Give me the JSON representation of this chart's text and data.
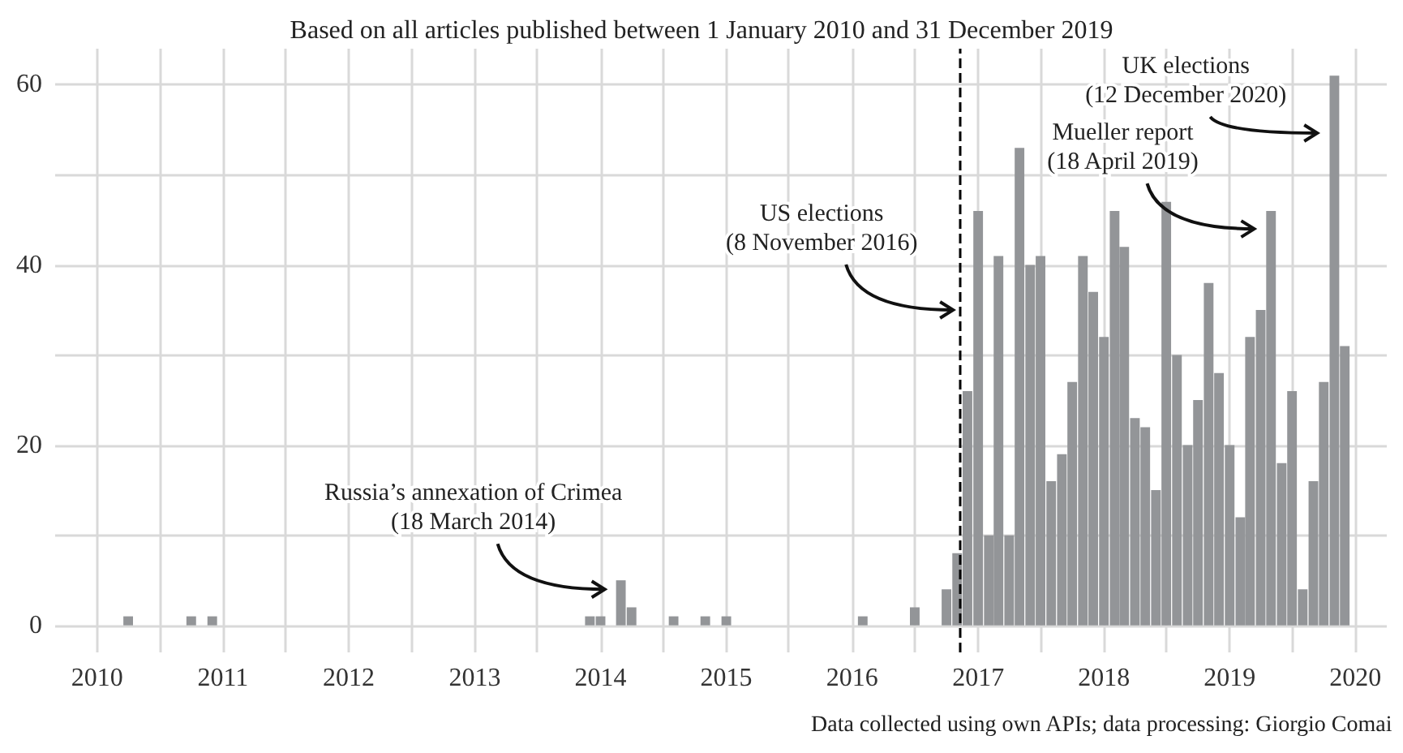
{
  "chart_data": {
    "type": "bar",
    "title": "Based on all articles published between 1 January 2010 and 31 December 2019",
    "x": [
      "2010-04",
      "2010-10",
      "2010-12",
      "2013-12",
      "2014-01",
      "2014-03",
      "2014-04",
      "2014-08",
      "2014-11",
      "2015-01",
      "2016-02",
      "2016-07",
      "2016-10",
      "2016-11",
      "2016-12",
      "2017-01",
      "2017-02",
      "2017-03",
      "2017-04",
      "2017-05",
      "2017-06",
      "2017-07",
      "2017-08",
      "2017-09",
      "2017-10",
      "2017-11",
      "2017-12",
      "2018-01",
      "2018-02",
      "2018-03",
      "2018-04",
      "2018-05",
      "2018-06",
      "2018-07",
      "2018-08",
      "2018-09",
      "2018-10",
      "2018-11",
      "2018-12",
      "2019-01",
      "2019-02",
      "2019-03",
      "2019-04",
      "2019-05",
      "2019-06",
      "2019-07",
      "2019-08",
      "2019-09",
      "2019-10",
      "2019-11",
      "2019-12"
    ],
    "values": [
      1,
      1,
      1,
      1,
      1,
      5,
      2,
      1,
      1,
      1,
      1,
      2,
      4,
      8,
      26,
      46,
      10,
      41,
      10,
      53,
      40,
      41,
      16,
      19,
      27,
      41,
      37,
      32,
      46,
      42,
      23,
      22,
      15,
      47,
      30,
      20,
      25,
      38,
      28,
      20,
      12,
      32,
      35,
      46,
      18,
      26,
      4,
      16,
      27,
      61,
      31
    ],
    "color": "#939598",
    "xlim": [
      "2009-09",
      "2020-04"
    ],
    "xticks": [
      "2010",
      {
        "value": "2010-07",
        "label": null
      },
      "2011",
      {
        "value": "2011-07",
        "label": null
      },
      "2012",
      {
        "value": "2012-07",
        "label": null
      },
      "2013",
      {
        "value": "2013-07",
        "label": null
      },
      "2014",
      {
        "value": "2014-07",
        "label": null
      },
      "2015",
      {
        "value": "2015-07",
        "label": null
      },
      "2016",
      {
        "value": "2016-07",
        "label": null
      },
      "2017",
      {
        "value": "2017-07",
        "label": null
      },
      "2018",
      {
        "value": "2018-07",
        "label": null
      },
      "2019",
      {
        "value": "2019-07",
        "label": null
      },
      "2020"
    ],
    "ylim": [
      -3,
      64
    ],
    "yticks": [
      0,
      {
        "value": 10,
        "label": null
      },
      20,
      {
        "value": 30,
        "label": null
      },
      40,
      {
        "value": 50,
        "label": null
      },
      60
    ],
    "grid": true,
    "ref_lines": [
      {
        "axis": "x",
        "value": "2016-11-08",
        "color": "#000000",
        "line_style": "dashed"
      }
    ],
    "annotations": [
      {
        "text": "Russia’s annexation of Crimea\n(18 March 2014)",
        "x": "2014-02",
        "y": 4
      },
      {
        "text": "US elections\n(8 November 2016)",
        "x": "2016-11-08",
        "y": 35
      },
      {
        "text": "Mueller report\n(18 April 2019)",
        "x": "2019-04",
        "y": 44
      },
      {
        "text": "UK elections\n(12 December 2020)",
        "x": "2019-10",
        "y": 57
      },
      "Data collected using own APIs; data processing: Giorgio Comai"
    ]
  }
}
